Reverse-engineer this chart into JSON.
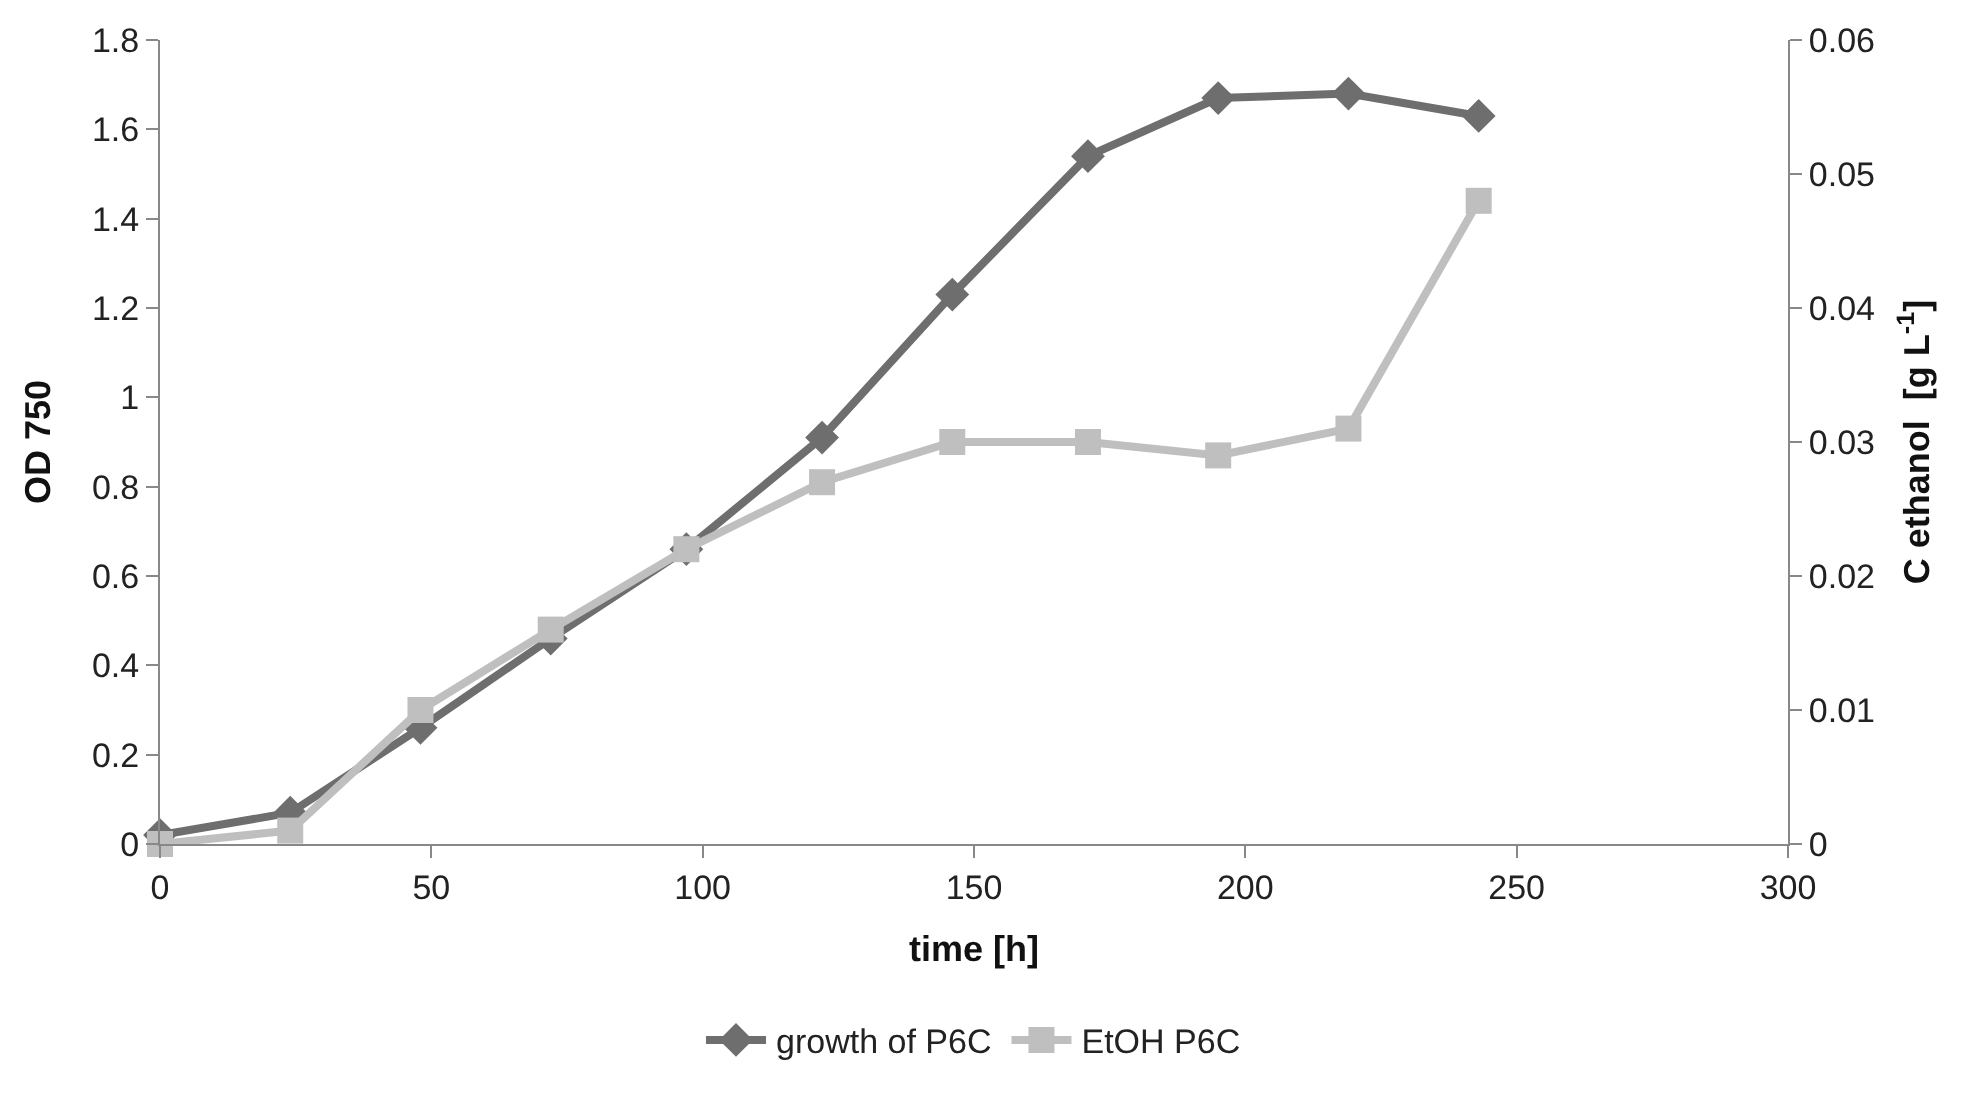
{
  "chart_data": {
    "type": "line",
    "xlabel": "time [h]",
    "ylabel": "OD 750",
    "y2label": "C ethanol  [g L$^{-1}$]",
    "x": [
      0,
      24,
      48,
      72,
      97,
      122,
      146,
      171,
      195,
      219,
      243
    ],
    "series": [
      {
        "name": "growth of P6C",
        "color": "#6e6e6e",
        "marker": "diamond",
        "values": [
          0.02,
          0.07,
          0.26,
          0.46,
          0.66,
          0.91,
          1.23,
          1.54,
          1.67,
          1.68,
          1.63
        ]
      },
      {
        "name": "EtOH P6C",
        "color": "#bfbfbf",
        "marker": "square",
        "axis": "y2",
        "values": [
          0,
          0.001,
          0.01,
          0.016,
          0.022,
          0.027,
          0.03,
          0.03,
          0.029,
          0.031,
          0.048
        ]
      }
    ],
    "xlim": [
      0,
      300
    ],
    "xticks": [
      0,
      50,
      100,
      150,
      200,
      250,
      300
    ],
    "ylim": [
      0,
      1.8
    ],
    "yticks": [
      0,
      0.2,
      0.4,
      0.6,
      0.8,
      1,
      1.2,
      1.4,
      1.6,
      1.8
    ],
    "y2lim": [
      0,
      0.06
    ],
    "y2ticks": [
      0,
      0.01,
      0.02,
      0.03,
      0.04,
      0.05,
      0.06
    ],
    "legend": "bottom",
    "line_style": "solid"
  }
}
